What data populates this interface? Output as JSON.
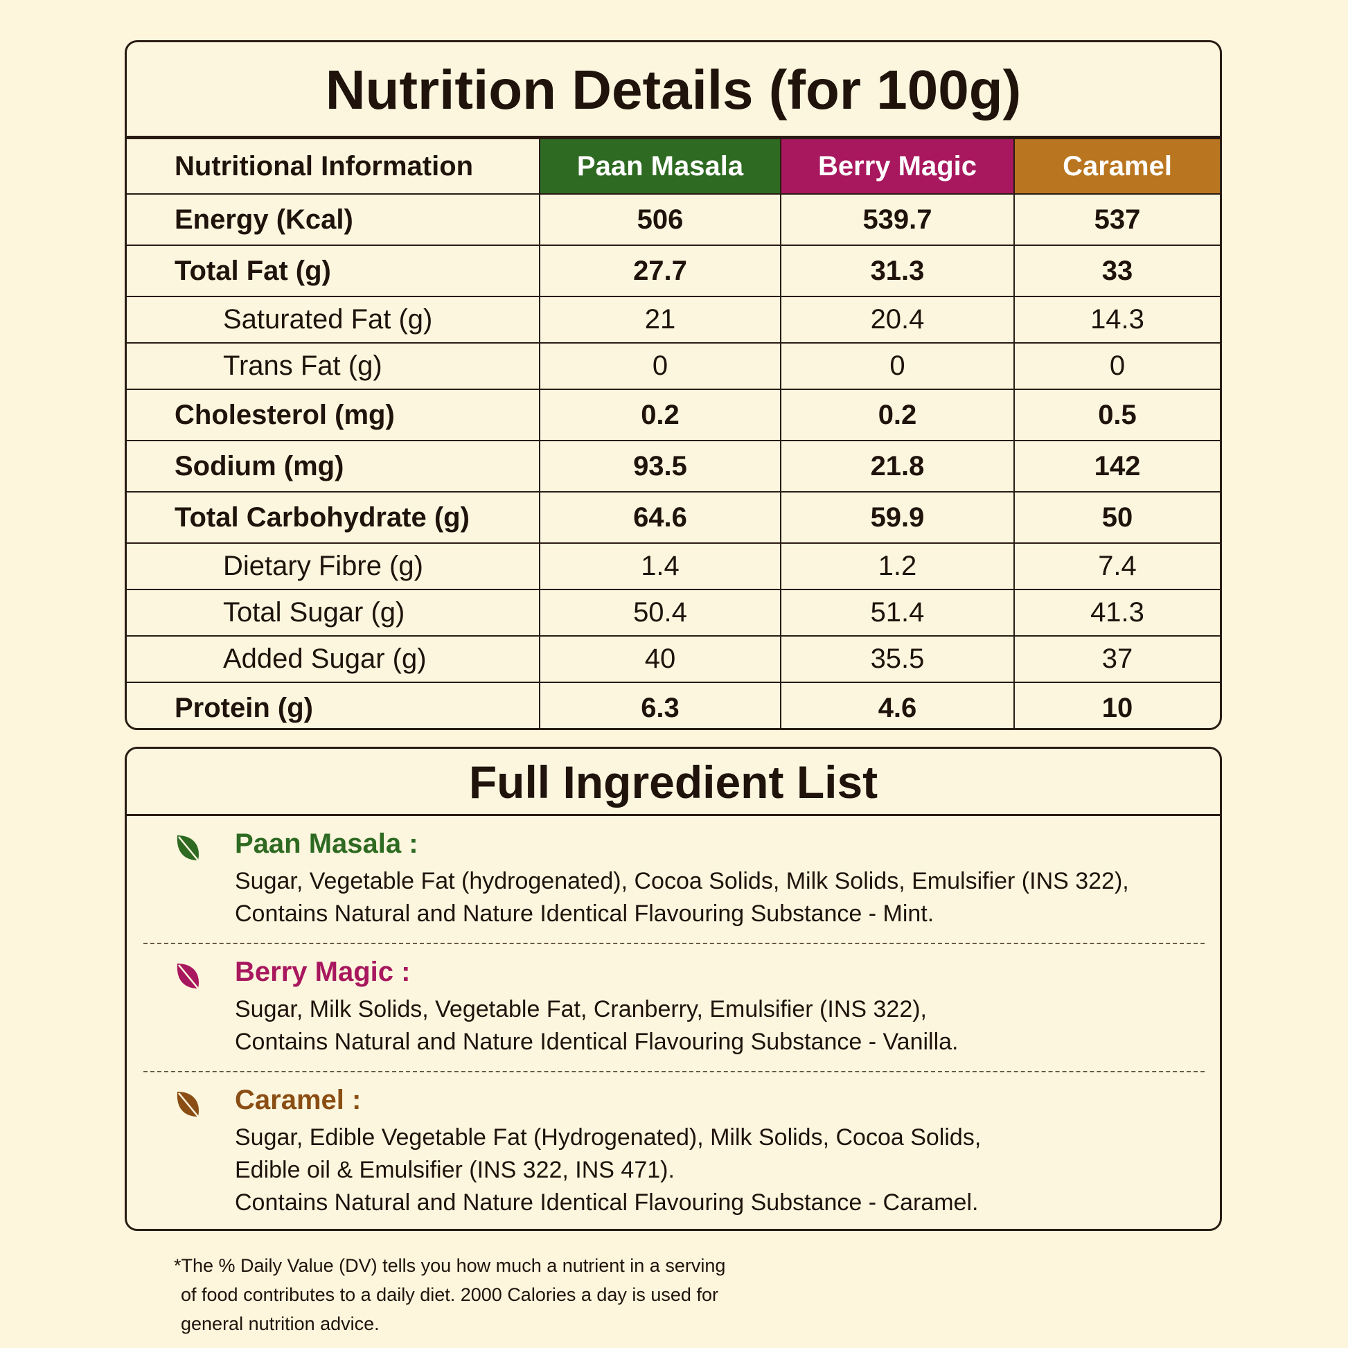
{
  "nutrition": {
    "title": "Nutrition Details (for 100g)",
    "header": [
      "Nutritional Information",
      "Paan Masala",
      "Berry Magic",
      "Caramel"
    ],
    "rows": [
      [
        "Energy (Kcal)",
        "506",
        "539.7",
        "537"
      ],
      [
        "Total Fat (g)",
        "27.7",
        "31.3",
        "33"
      ],
      [
        "Saturated Fat (g)",
        "21",
        "20.4",
        "14.3"
      ],
      [
        "Trans Fat (g)",
        "0",
        "0",
        "0"
      ],
      [
        "Cholesterol (mg)",
        "0.2",
        "0.2",
        "0.5"
      ],
      [
        "Sodium (mg)",
        "93.5",
        "21.8",
        "142"
      ],
      [
        "Total Carbohydrate (g)",
        "64.6",
        "59.9",
        "50"
      ],
      [
        "Dietary Fibre (g)",
        "1.4",
        "1.2",
        "7.4"
      ],
      [
        "Total Sugar (g)",
        "50.4",
        "51.4",
        "41.3"
      ],
      [
        "Added Sugar (g)",
        "40",
        "35.5",
        "37"
      ],
      [
        "Protein (g)",
        "6.3",
        "4.6",
        "10"
      ]
    ]
  },
  "ingredients": {
    "title": "Full Ingredient List",
    "items": [
      {
        "name": "Paan Masala :",
        "color": "#2e6a22",
        "lines": [
          "Sugar, Vegetable Fat (hydrogenated), Cocoa Solids, Milk Solids, Emulsifier (INS 322),",
          "Contains Natural and Nature Identical Flavouring Substance - Mint."
        ]
      },
      {
        "name": "Berry Magic :",
        "color": "#a8185e",
        "lines": [
          "Sugar, Milk Solids, Vegetable Fat, Cranberry, Emulsifier (INS 322),",
          "Contains Natural and Nature Identical Flavouring Substance - Vanilla."
        ]
      },
      {
        "name": "Caramel :",
        "color": "#8a4e14",
        "lines": [
          "Sugar, Edible Vegetable Fat (Hydrogenated), Milk Solids, Cocoa Solids,",
          "Edible oil & Emulsifier (INS 322, INS 471).",
          "Contains Natural and Nature Identical Flavouring Substance - Caramel."
        ]
      }
    ]
  },
  "footnote": [
    "*The % Daily Value (DV) tells you how much a nutrient in a serving",
    "of food contributes to a daily diet.  2000 Calories a day is used for",
    "general nutrition advice."
  ]
}
